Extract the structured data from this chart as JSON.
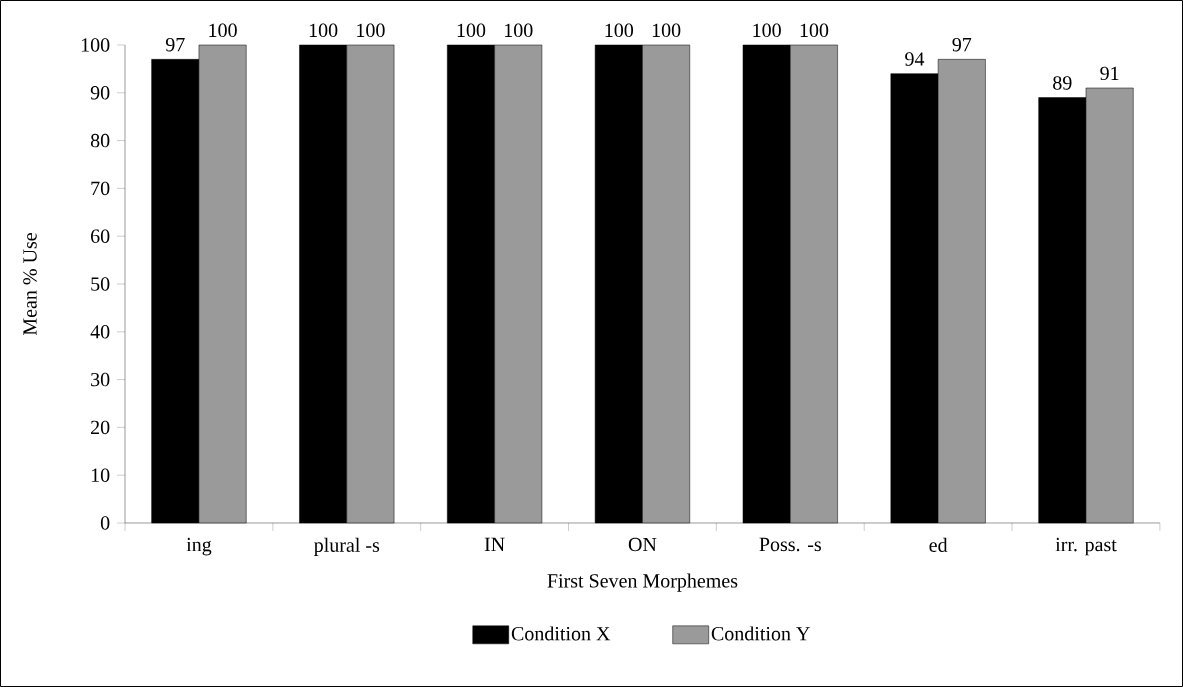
{
  "chart_data": {
    "type": "bar",
    "xlabel": "First Seven Morphemes",
    "ylabel": "Mean % Use",
    "categories": [
      "ing",
      "plural -s",
      "IN",
      "ON",
      "Poss. -s",
      "ed",
      "irr. past"
    ],
    "series": [
      {
        "name": "Condition X",
        "color": "#000000",
        "values": [
          97,
          100,
          100,
          100,
          100,
          94,
          89
        ]
      },
      {
        "name": "Condition Y",
        "color": "#9a9a9a",
        "values": [
          100,
          100,
          100,
          100,
          100,
          97,
          91
        ]
      }
    ],
    "ylim": [
      0,
      100
    ],
    "yticks": [
      0,
      10,
      20,
      30,
      40,
      50,
      60,
      70,
      80,
      90,
      100
    ],
    "data_labels": true,
    "legend": "bottom",
    "grid": false
  }
}
